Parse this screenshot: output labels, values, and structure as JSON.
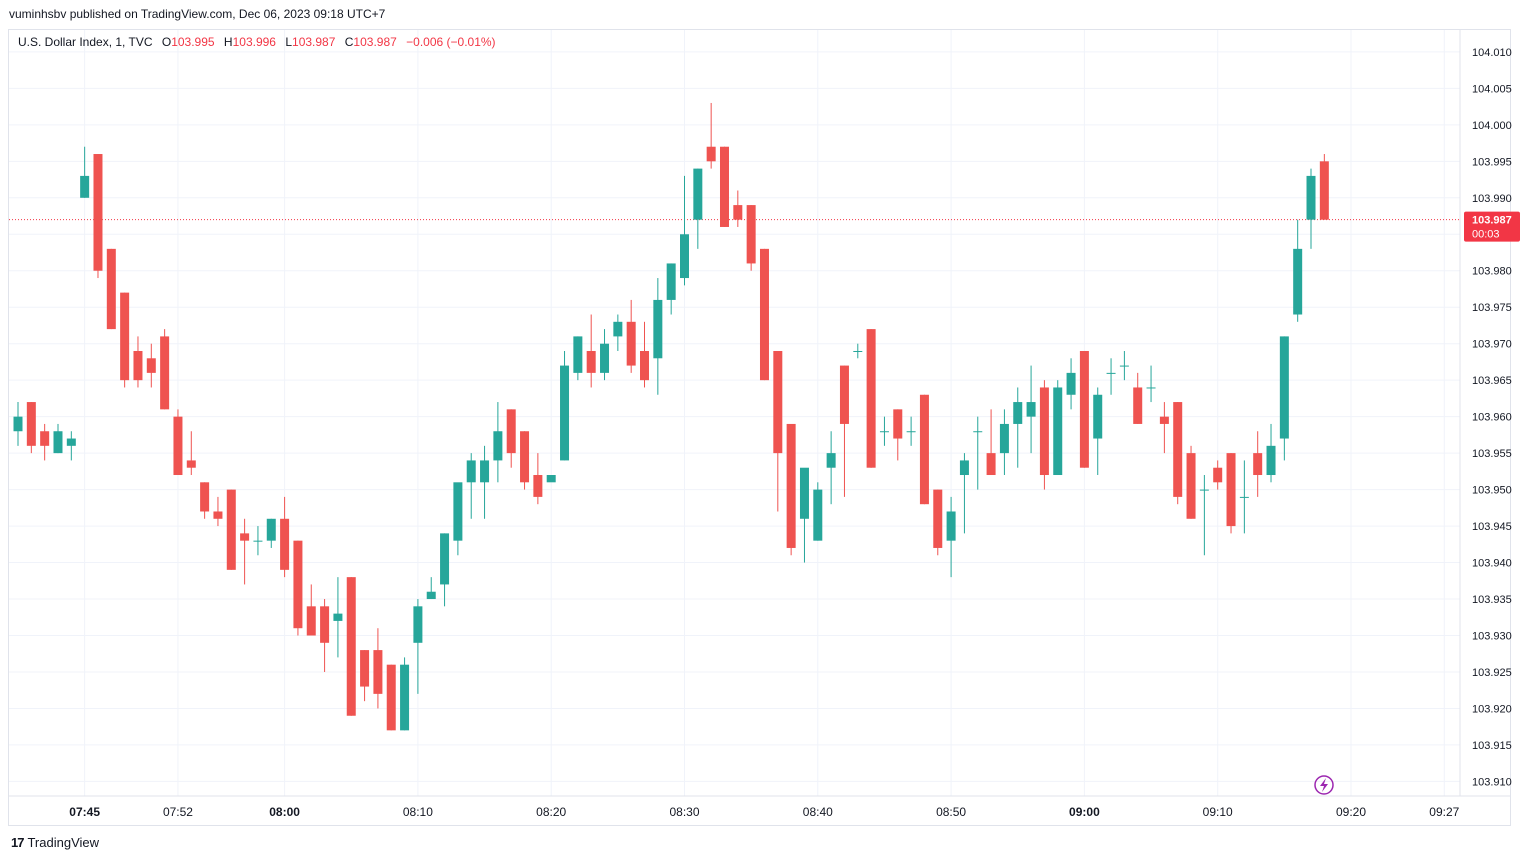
{
  "header": {
    "publisher": "vuminhsbv published on TradingView.com, Dec 06, 2023 09:18 UTC+7"
  },
  "legend": {
    "symbol": "U.S. Dollar Index, 1, TVC",
    "o_label": "O",
    "o_value": "103.995",
    "h_label": "H",
    "h_value": "103.996",
    "l_label": "L",
    "l_value": "103.987",
    "c_label": "C",
    "c_value": "103.987",
    "change": "−0.006 (−0.01%)"
  },
  "price_tag": {
    "price": "103.987",
    "countdown": "00:03"
  },
  "footer": {
    "brand": "TradingView",
    "mark": "17"
  },
  "icons": {
    "flash": "lightning-icon"
  },
  "colors": {
    "up": "#26a69a",
    "down": "#ef5350",
    "grid": "#f0f3fa",
    "last_price": "#f23645"
  },
  "chart_data": {
    "type": "candlestick",
    "y_range": [
      103.908,
      104.013
    ],
    "last_price": 103.987,
    "y_ticks": [
      "104.010",
      "104.005",
      "104.000",
      "103.995",
      "103.990",
      "103.985",
      "103.980",
      "103.975",
      "103.970",
      "103.965",
      "103.960",
      "103.955",
      "103.950",
      "103.945",
      "103.940",
      "103.935",
      "103.930",
      "103.925",
      "103.920",
      "103.915",
      "103.910"
    ],
    "x_ticks": [
      {
        "label": "07:45",
        "bold": true,
        "bar": 5
      },
      {
        "label": "07:52",
        "bold": false,
        "bar": 12
      },
      {
        "label": "08:00",
        "bold": true,
        "bar": 20
      },
      {
        "label": "08:10",
        "bold": false,
        "bar": 30
      },
      {
        "label": "08:20",
        "bold": false,
        "bar": 40
      },
      {
        "label": "08:30",
        "bold": false,
        "bar": 50
      },
      {
        "label": "08:40",
        "bold": false,
        "bar": 60
      },
      {
        "label": "08:50",
        "bold": false,
        "bar": 70
      },
      {
        "label": "09:00",
        "bold": true,
        "bar": 80
      },
      {
        "label": "09:10",
        "bold": false,
        "bar": 90
      },
      {
        "label": "09:20",
        "bold": false,
        "bar": 100
      },
      {
        "label": "09:27",
        "bold": false,
        "bar": 107
      }
    ],
    "candles": [
      [
        103.958,
        103.96,
        103.962,
        103.956
      ],
      [
        103.962,
        103.956,
        103.962,
        103.955
      ],
      [
        103.958,
        103.956,
        103.959,
        103.954
      ],
      [
        103.955,
        103.958,
        103.959,
        103.955
      ],
      [
        103.956,
        103.957,
        103.958,
        103.954
      ],
      [
        103.99,
        103.993,
        103.997,
        103.99
      ],
      [
        103.996,
        103.98,
        103.996,
        103.979
      ],
      [
        103.983,
        103.972,
        103.983,
        103.972
      ],
      [
        103.977,
        103.965,
        103.977,
        103.964
      ],
      [
        103.969,
        103.965,
        103.971,
        103.964
      ],
      [
        103.968,
        103.966,
        103.97,
        103.964
      ],
      [
        103.971,
        103.961,
        103.972,
        103.961
      ],
      [
        103.96,
        103.952,
        103.961,
        103.952
      ],
      [
        103.954,
        103.953,
        103.958,
        103.952
      ],
      [
        103.951,
        103.947,
        103.951,
        103.946
      ],
      [
        103.947,
        103.946,
        103.949,
        103.945
      ],
      [
        103.95,
        103.939,
        103.95,
        103.939
      ],
      [
        103.944,
        103.943,
        103.946,
        103.937
      ],
      [
        103.943,
        103.943,
        103.945,
        103.941
      ],
      [
        103.943,
        103.946,
        103.946,
        103.942
      ],
      [
        103.946,
        103.939,
        103.949,
        103.938
      ],
      [
        103.943,
        103.931,
        103.943,
        103.93
      ],
      [
        103.934,
        103.93,
        103.937,
        103.93
      ],
      [
        103.934,
        103.929,
        103.935,
        103.925
      ],
      [
        103.932,
        103.933,
        103.938,
        103.927
      ],
      [
        103.938,
        103.919,
        103.938,
        103.919
      ],
      [
        103.928,
        103.923,
        103.928,
        103.921
      ],
      [
        103.928,
        103.922,
        103.931,
        103.92
      ],
      [
        103.926,
        103.917,
        103.926,
        103.917
      ],
      [
        103.917,
        103.926,
        103.927,
        103.917
      ],
      [
        103.929,
        103.934,
        103.935,
        103.922
      ],
      [
        103.935,
        103.936,
        103.938,
        103.935
      ],
      [
        103.937,
        103.944,
        103.944,
        103.934
      ],
      [
        103.943,
        103.951,
        103.944,
        103.941
      ],
      [
        103.951,
        103.954,
        103.955,
        103.946
      ],
      [
        103.951,
        103.954,
        103.956,
        103.946
      ],
      [
        103.954,
        103.958,
        103.962,
        103.951
      ],
      [
        103.961,
        103.955,
        103.961,
        103.953
      ],
      [
        103.958,
        103.951,
        103.958,
        103.95
      ],
      [
        103.952,
        103.949,
        103.955,
        103.948
      ],
      [
        103.951,
        103.952,
        103.951,
        103.951
      ],
      [
        103.954,
        103.967,
        103.969,
        103.954
      ],
      [
        103.966,
        103.971,
        103.971,
        103.965
      ],
      [
        103.969,
        103.966,
        103.974,
        103.964
      ],
      [
        103.966,
        103.97,
        103.972,
        103.965
      ],
      [
        103.971,
        103.973,
        103.974,
        103.969
      ],
      [
        103.973,
        103.967,
        103.976,
        103.966
      ],
      [
        103.969,
        103.965,
        103.973,
        103.964
      ],
      [
        103.968,
        103.976,
        103.979,
        103.963
      ],
      [
        103.976,
        103.981,
        103.981,
        103.974
      ],
      [
        103.979,
        103.985,
        103.993,
        103.978
      ],
      [
        103.987,
        103.994,
        103.994,
        103.983
      ],
      [
        103.997,
        103.995,
        104.003,
        103.994
      ],
      [
        103.997,
        103.986,
        103.997,
        103.986
      ],
      [
        103.989,
        103.987,
        103.991,
        103.986
      ],
      [
        103.989,
        103.981,
        103.989,
        103.98
      ],
      [
        103.983,
        103.965,
        103.983,
        103.965
      ],
      [
        103.969,
        103.955,
        103.969,
        103.947
      ],
      [
        103.959,
        103.942,
        103.959,
        103.941
      ],
      [
        103.946,
        103.953,
        103.947,
        103.94
      ],
      [
        103.943,
        103.95,
        103.951,
        103.943
      ],
      [
        103.953,
        103.955,
        103.958,
        103.948
      ],
      [
        103.967,
        103.959,
        103.967,
        103.949
      ],
      [
        103.969,
        103.969,
        103.97,
        103.968
      ],
      [
        103.972,
        103.953,
        103.972,
        103.953
      ],
      [
        103.958,
        103.958,
        103.96,
        103.956
      ],
      [
        103.961,
        103.957,
        103.961,
        103.954
      ],
      [
        103.958,
        103.958,
        103.96,
        103.956
      ],
      [
        103.963,
        103.948,
        103.963,
        103.948
      ],
      [
        103.95,
        103.942,
        103.95,
        103.941
      ],
      [
        103.943,
        103.947,
        103.949,
        103.938
      ],
      [
        103.952,
        103.954,
        103.955,
        103.944
      ],
      [
        103.958,
        103.958,
        103.96,
        103.95
      ],
      [
        103.955,
        103.952,
        103.961,
        103.952
      ],
      [
        103.955,
        103.959,
        103.961,
        103.952
      ],
      [
        103.959,
        103.962,
        103.964,
        103.953
      ],
      [
        103.96,
        103.962,
        103.967,
        103.955
      ],
      [
        103.964,
        103.952,
        103.965,
        103.95
      ],
      [
        103.952,
        103.964,
        103.965,
        103.952
      ],
      [
        103.963,
        103.966,
        103.968,
        103.961
      ],
      [
        103.969,
        103.953,
        103.969,
        103.953
      ],
      [
        103.957,
        103.963,
        103.964,
        103.952
      ],
      [
        103.966,
        103.966,
        103.968,
        103.963
      ],
      [
        103.967,
        103.967,
        103.969,
        103.965
      ],
      [
        103.964,
        103.959,
        103.966,
        103.959
      ],
      [
        103.964,
        103.964,
        103.967,
        103.962
      ],
      [
        103.96,
        103.959,
        103.962,
        103.955
      ],
      [
        103.962,
        103.949,
        103.962,
        103.948
      ],
      [
        103.955,
        103.946,
        103.956,
        103.946
      ],
      [
        103.95,
        103.95,
        103.952,
        103.941
      ],
      [
        103.953,
        103.951,
        103.954,
        103.95
      ],
      [
        103.955,
        103.945,
        103.955,
        103.944
      ],
      [
        103.949,
        103.949,
        103.954,
        103.944
      ],
      [
        103.955,
        103.952,
        103.958,
        103.949
      ],
      [
        103.952,
        103.956,
        103.959,
        103.951
      ],
      [
        103.957,
        103.971,
        103.971,
        103.954
      ],
      [
        103.974,
        103.983,
        103.987,
        103.973
      ],
      [
        103.987,
        103.993,
        103.994,
        103.983
      ],
      [
        103.995,
        103.987,
        103.996,
        103.987
      ]
    ]
  }
}
